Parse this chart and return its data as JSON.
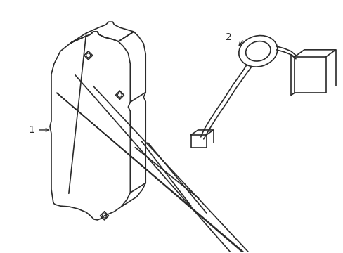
{
  "background_color": "#ffffff",
  "line_color": "#2a2a2a",
  "line_width": 1.2,
  "label_1": "1",
  "label_2": "2",
  "label_fontsize": 10,
  "figure_width": 4.89,
  "figure_height": 3.6,
  "dpi": 100
}
